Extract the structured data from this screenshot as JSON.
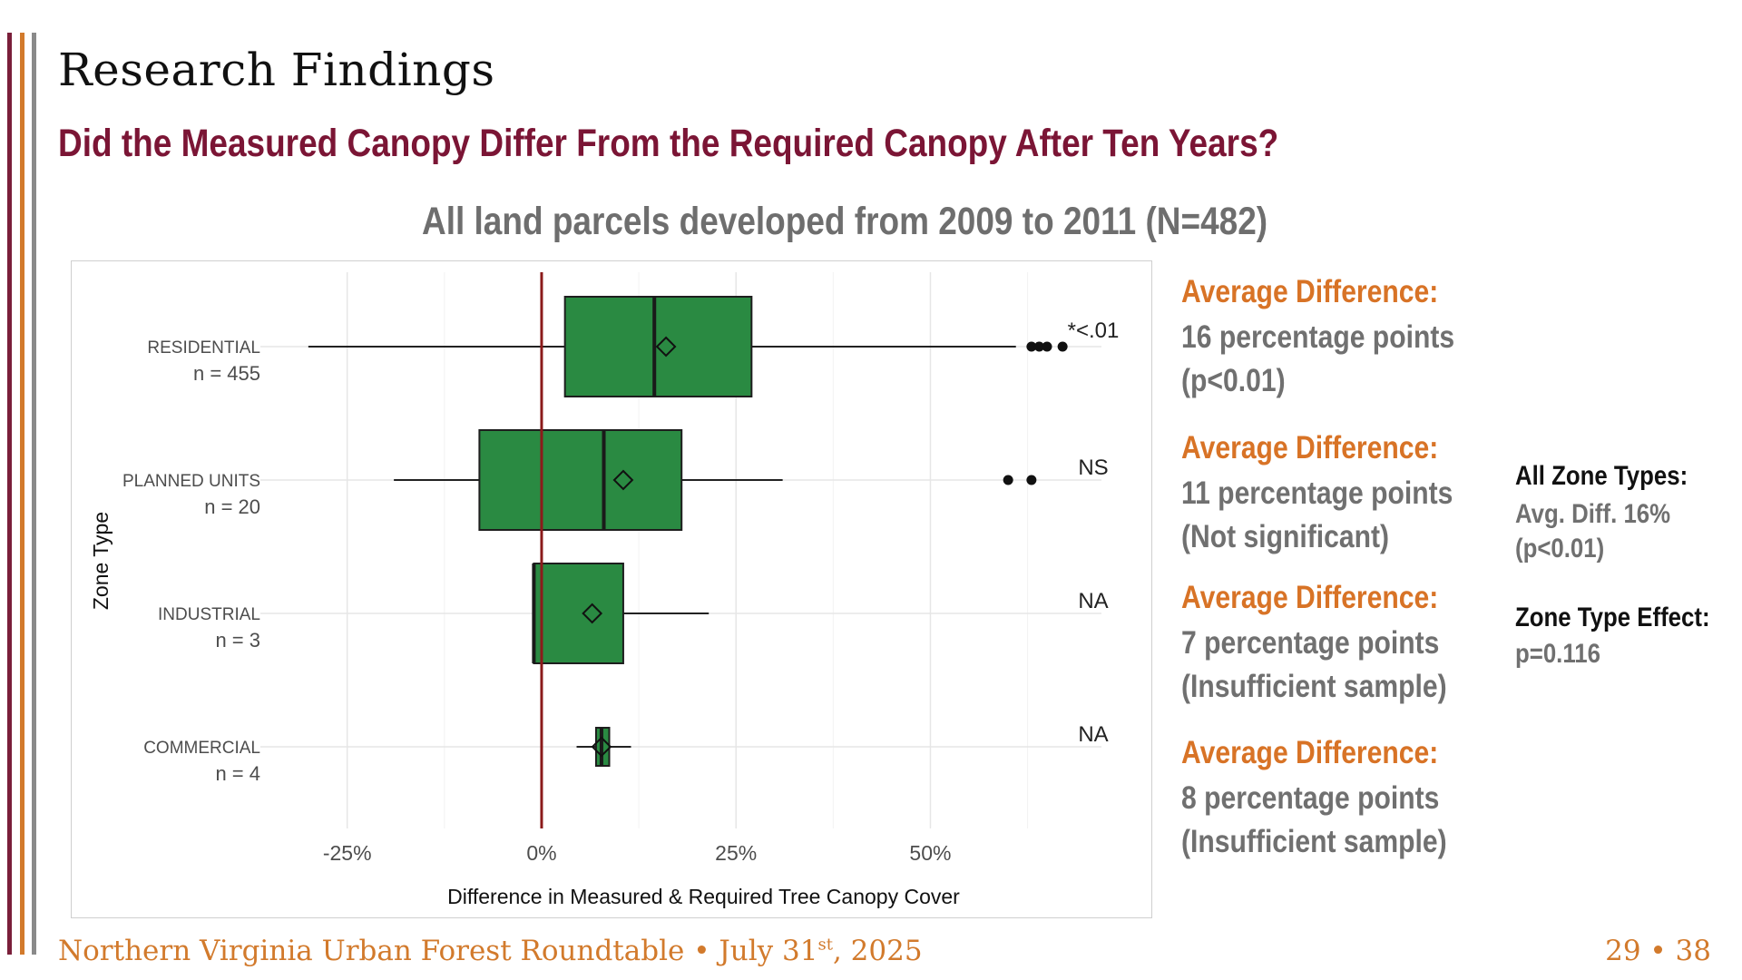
{
  "slide": {
    "title": "Research Findings",
    "subtitle": "Did the Measured Canopy Differ From the Required Canopy After Ten Years?",
    "chart_heading": "All land parcels developed from 2009 to 2011 (N=482)"
  },
  "annotations": [
    {
      "label": "Average Difference:",
      "line1": "16 percentage points",
      "line2": "(p<0.01)"
    },
    {
      "label": "Average Difference:",
      "line1": "11 percentage points",
      "line2": "(Not significant)"
    },
    {
      "label": "Average Difference:",
      "line1": "7 percentage points",
      "line2": "(Insufficient sample)"
    },
    {
      "label": "Average Difference:",
      "line1": "8 percentage points",
      "line2": "(Insufficient sample)"
    }
  ],
  "summary": {
    "all_title": "All Zone Types:",
    "all_line1": "Avg. Diff. 16%",
    "all_line2": "(p<0.01)",
    "effect_title": "Zone Type Effect:",
    "effect_value": "p=0.116"
  },
  "footer": {
    "event": "Northern Virginia Urban Forest Roundtable • July 31",
    "event_sup": "st",
    "event_year": ", 2025",
    "page": "29 • 38"
  },
  "colors": {
    "box_fill": "#2a8a42",
    "reference_line": "#8b1a1a",
    "accent_orange": "#d87326",
    "accent_maroon": "#7b1535"
  },
  "chart_data": {
    "type": "boxplot",
    "orientation": "horizontal",
    "xlabel": "Difference in Measured & Required Tree Canopy Cover",
    "ylabel": "Zone Type",
    "xlim": [
      -35,
      72
    ],
    "xticks": [
      -25,
      0,
      25,
      50
    ],
    "xtick_labels": [
      "-25%",
      "0%",
      "25%",
      "50%"
    ],
    "reference_line_x": 0,
    "grid": true,
    "categories": [
      {
        "name": "RESIDENTIAL",
        "n_label": "n = 455",
        "whisker_low": -30,
        "q1": 3,
        "median": 14.5,
        "q3": 27,
        "whisker_high": 61,
        "mean": 16,
        "outliers": [
          63,
          64,
          65,
          67
        ],
        "significance": "*<.01"
      },
      {
        "name": "PLANNED UNITS",
        "n_label": "n = 20",
        "whisker_low": -19,
        "q1": -8,
        "median": 8,
        "q3": 18,
        "whisker_high": 31,
        "mean": 10.5,
        "outliers": [
          60,
          63
        ],
        "significance": "NS"
      },
      {
        "name": "INDUSTRIAL",
        "n_label": "n = 3",
        "whisker_low": -1,
        "q1": -1,
        "median": -1,
        "q3": 10.5,
        "whisker_high": 21.5,
        "mean": 6.5,
        "outliers": [],
        "significance": "NA"
      },
      {
        "name": "COMMERCIAL",
        "n_label": "n = 4",
        "whisker_low": 4.5,
        "q1": 7,
        "median": 7.7,
        "q3": 8.7,
        "whisker_high": 11.5,
        "mean": 7.7,
        "outliers": [],
        "significance": "NA"
      }
    ]
  }
}
